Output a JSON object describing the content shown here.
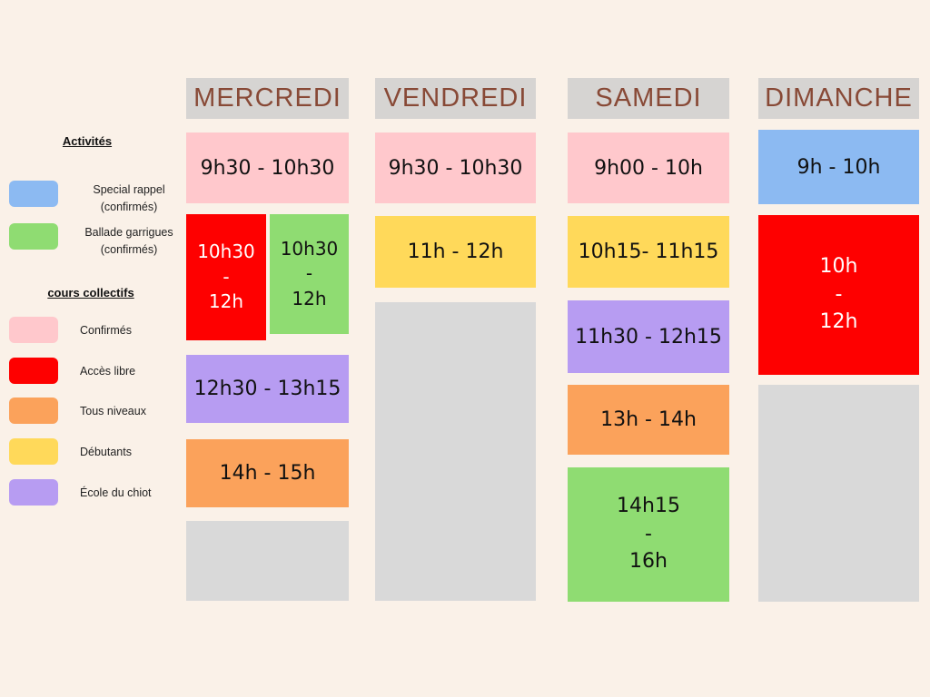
{
  "page": {
    "background_color": "#faf1e8",
    "header_bg_color": "#d6d4d2",
    "header_text_color": "#884936",
    "empty_slot_color": "#d9d9d9"
  },
  "categories": {
    "special_rappel": {
      "color": "#8cbaf2",
      "text_color": "#111111"
    },
    "ballade_garrigues": {
      "color": "#8fdc72",
      "text_color": "#111111"
    },
    "confirmes": {
      "color": "#ffc8cc",
      "text_color": "#111111"
    },
    "acces_libre": {
      "color": "#fe0000",
      "text_color": "#ffffff"
    },
    "tous_niveaux": {
      "color": "#fba25b",
      "text_color": "#111111"
    },
    "debutants": {
      "color": "#ffd95a",
      "text_color": "#111111"
    },
    "ecole_du_chiot": {
      "color": "#b79cf2",
      "text_color": "#111111"
    },
    "empty": {
      "color": "#d9d9d9",
      "text_color": "#111111"
    }
  },
  "legend": {
    "activities_title": "Activités",
    "activities": [
      {
        "category": "special_rappel",
        "label": "Special rappel\n(confirmés)"
      },
      {
        "category": "ballade_garrigues",
        "label": "Ballade garrigues\n(confirmés)"
      }
    ],
    "courses_title": "cours collectifs",
    "courses": [
      {
        "category": "confirmes",
        "label": "Confirmés"
      },
      {
        "category": "acces_libre",
        "label": "Accès libre"
      },
      {
        "category": "tous_niveaux",
        "label": "Tous niveaux"
      },
      {
        "category": "debutants",
        "label": "Débutants"
      },
      {
        "category": "ecole_du_chiot",
        "label": "École du chiot"
      }
    ]
  },
  "schedule": {
    "days": [
      {
        "label": "MERCREDI",
        "slots": [
          {
            "time": "9h30 - 10h30",
            "category": "confirmes"
          },
          {
            "time": "10h30\n-\n12h",
            "category": "acces_libre"
          },
          {
            "time": "10h30\n-\n12h",
            "category": "ballade_garrigues"
          },
          {
            "time": "12h30 - 13h15",
            "category": "ecole_du_chiot"
          },
          {
            "time": "14h - 15h",
            "category": "tous_niveaux"
          },
          {
            "time": "",
            "category": "empty"
          }
        ]
      },
      {
        "label": "VENDREDI",
        "slots": [
          {
            "time": "9h30 - 10h30",
            "category": "confirmes"
          },
          {
            "time": "11h - 12h",
            "category": "debutants"
          },
          {
            "time": "",
            "category": "empty"
          }
        ]
      },
      {
        "label": "SAMEDI",
        "slots": [
          {
            "time": "9h00 - 10h",
            "category": "confirmes"
          },
          {
            "time": "10h15- 11h15",
            "category": "debutants"
          },
          {
            "time": "11h30 - 12h15",
            "category": "ecole_du_chiot"
          },
          {
            "time": "13h - 14h",
            "category": "tous_niveaux"
          },
          {
            "time": "14h15\n-\n16h",
            "category": "ballade_garrigues"
          }
        ]
      },
      {
        "label": "DIMANCHE",
        "slots": [
          {
            "time": "9h - 10h",
            "category": "special_rappel"
          },
          {
            "time": "10h\n-\n12h",
            "category": "acces_libre"
          },
          {
            "time": "",
            "category": "empty"
          }
        ]
      }
    ]
  }
}
